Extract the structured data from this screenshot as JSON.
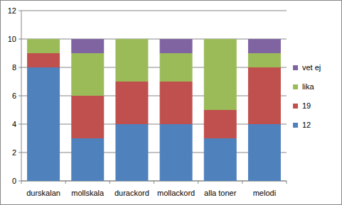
{
  "chart_data": {
    "type": "bar",
    "stacked": true,
    "grid": true,
    "legend": "right",
    "categories": [
      "durskalan",
      "mollskala",
      "durackord",
      "mollackord",
      "alla toner",
      "melodi"
    ],
    "series": [
      {
        "name": "12",
        "color": "#4f81bd",
        "values": [
          8,
          3,
          4,
          4,
          3,
          4
        ]
      },
      {
        "name": "19",
        "color": "#c0504d",
        "values": [
          1,
          3,
          3,
          3,
          2,
          4
        ]
      },
      {
        "name": "lika",
        "color": "#9bbb59",
        "values": [
          1,
          3,
          3,
          2,
          5,
          1
        ]
      },
      {
        "name": "vet ej",
        "color": "#8064a2",
        "values": [
          0,
          1,
          0,
          1,
          0,
          1
        ]
      }
    ],
    "ylim": [
      0,
      12
    ],
    "yticks": [
      0,
      2,
      4,
      6,
      8,
      10,
      12
    ]
  }
}
